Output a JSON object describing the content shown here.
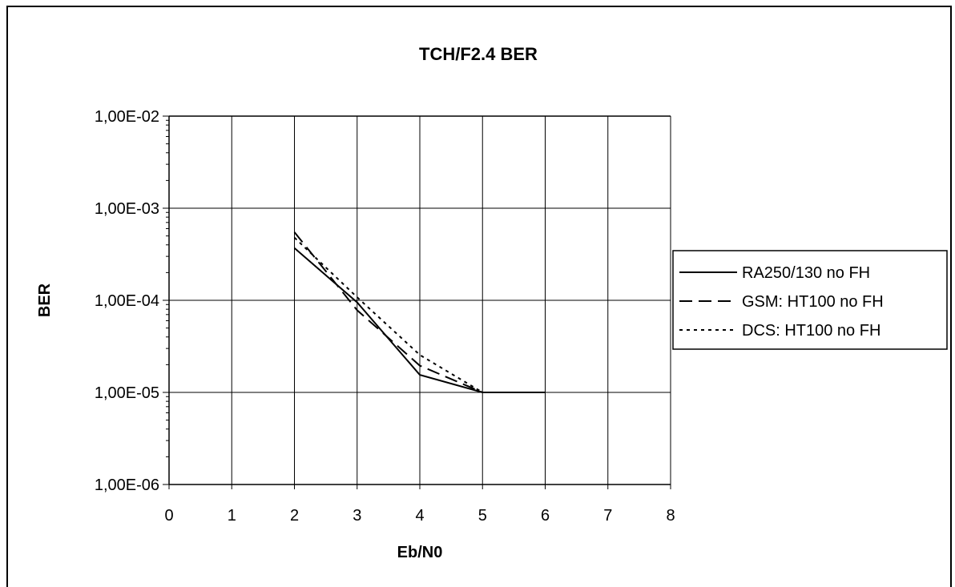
{
  "chart_data": {
    "type": "line",
    "title": "TCH/F2.4  BER",
    "xlabel": "Eb/N0",
    "ylabel": "BER",
    "x_ticks": [
      "0",
      "1",
      "2",
      "3",
      "4",
      "5",
      "6",
      "7",
      "8"
    ],
    "y_ticks": [
      "1,00E-02",
      "1,00E-03",
      "1,00E-04",
      "1,00E-05",
      "1,00E-06"
    ],
    "xlim": [
      0,
      8
    ],
    "ylim": [
      1e-06,
      0.01
    ],
    "y_scale": "log",
    "grid": true,
    "legend_position": "right",
    "series": [
      {
        "name": "RA250/130 no FH",
        "line_style": "solid",
        "color": "#000000",
        "points": [
          [
            2,
            0.00037
          ],
          [
            3,
            9.5e-05
          ],
          [
            4,
            1.55e-05
          ],
          [
            5,
            1e-05
          ],
          [
            6,
            1e-05
          ]
        ]
      },
      {
        "name": "GSM: HT100 no FH",
        "line_style": "dashed",
        "color": "#000000",
        "points": [
          [
            2,
            0.00055
          ],
          [
            3,
            7.8e-05
          ],
          [
            4,
            1.95e-05
          ],
          [
            5,
            1e-05
          ],
          [
            6,
            1e-05
          ]
        ]
      },
      {
        "name": "DCS: HT100 no FH",
        "line_style": "dotted",
        "color": "#000000",
        "points": [
          [
            2,
            0.00048
          ],
          [
            3,
            0.000108
          ],
          [
            4,
            2.55e-05
          ],
          [
            5,
            1e-05
          ],
          [
            6,
            1e-05
          ]
        ]
      }
    ]
  }
}
